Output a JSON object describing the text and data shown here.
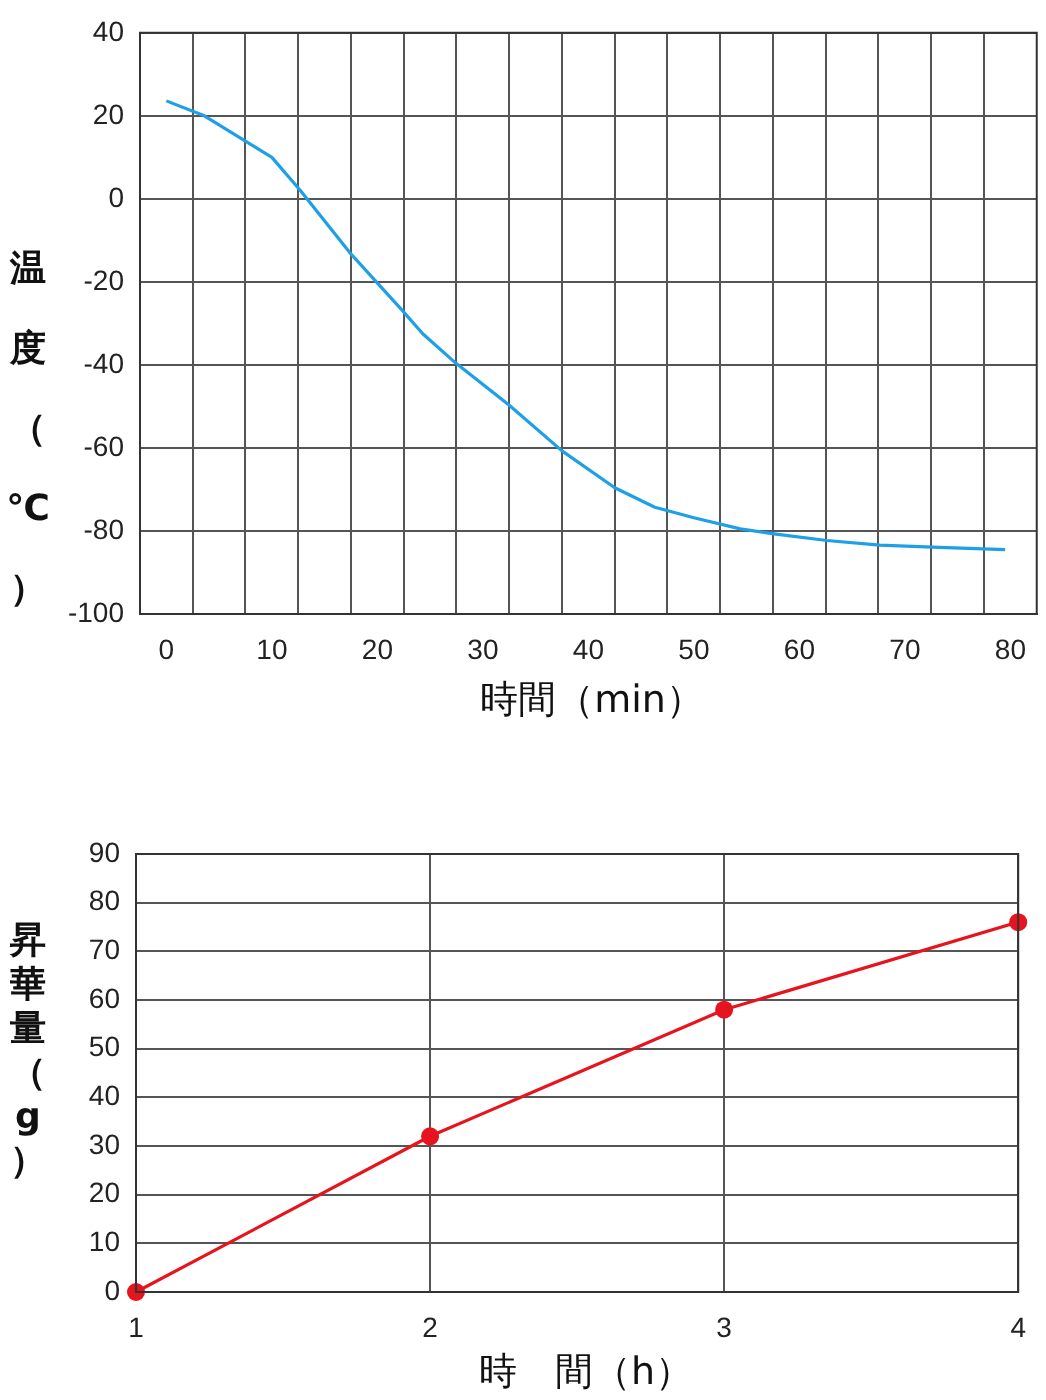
{
  "chart_data": [
    {
      "type": "line",
      "xlabel": "時間（min）",
      "ylabel": "温度（℃）",
      "x": [
        0,
        3.6,
        10,
        12.7,
        17.4,
        22.4,
        24.3,
        27.4,
        32.5,
        37.5,
        42.5,
        46.3,
        50,
        54.4,
        57.6,
        62.6,
        67.6,
        72.6,
        79.5
      ],
      "series": [
        {
          "color": "#1ea0e6",
          "values": [
            23.6,
            20,
            10,
            2,
            -13,
            -27,
            -32.5,
            -39.5,
            -49.7,
            -60.7,
            -69.6,
            -74.3,
            -76.8,
            -79.5,
            -80.7,
            -82.3,
            -83.4,
            -83.9,
            -84.5
          ]
        }
      ],
      "xlim": [
        -2.5,
        82.5
      ],
      "xticks": [
        0,
        {
          "value": 2.5,
          "label": null
        },
        {
          "value": 7.5,
          "label": null
        },
        10,
        {
          "value": 12.5,
          "label": null
        },
        {
          "value": 17.5,
          "label": null
        },
        20,
        {
          "value": 22.5,
          "label": null
        },
        {
          "value": 27.5,
          "label": null
        },
        30,
        {
          "value": 32.5,
          "label": null
        },
        {
          "value": 37.5,
          "label": null
        },
        40,
        {
          "value": 42.5,
          "label": null
        },
        {
          "value": 47.5,
          "label": null
        },
        50,
        {
          "value": 52.5,
          "label": null
        },
        {
          "value": 57.5,
          "label": null
        },
        60,
        {
          "value": 62.5,
          "label": null
        },
        {
          "value": 67.5,
          "label": null
        },
        70,
        {
          "value": 72.5,
          "label": null
        },
        {
          "value": 77.5,
          "label": null
        },
        80
      ],
      "ylim": [
        -100,
        40
      ],
      "yticks": [
        -100,
        -80,
        -60,
        -40,
        -20,
        0,
        20,
        40
      ],
      "grid": true
    },
    {
      "type": "line",
      "xlabel": "時　間（h）",
      "ylabel": "昇華量（g）",
      "x": [
        1,
        2,
        3,
        4
      ],
      "series": [
        {
          "color": "#e6141e",
          "values": [
            0,
            32,
            58,
            76
          ]
        }
      ],
      "xlim": [
        1,
        4
      ],
      "xticks": [
        1,
        2,
        3,
        4
      ],
      "ylim": [
        0,
        90
      ],
      "yticks": [
        0,
        10,
        20,
        30,
        40,
        50,
        60,
        70,
        80,
        90
      ],
      "grid": true,
      "marker": "circle"
    }
  ]
}
